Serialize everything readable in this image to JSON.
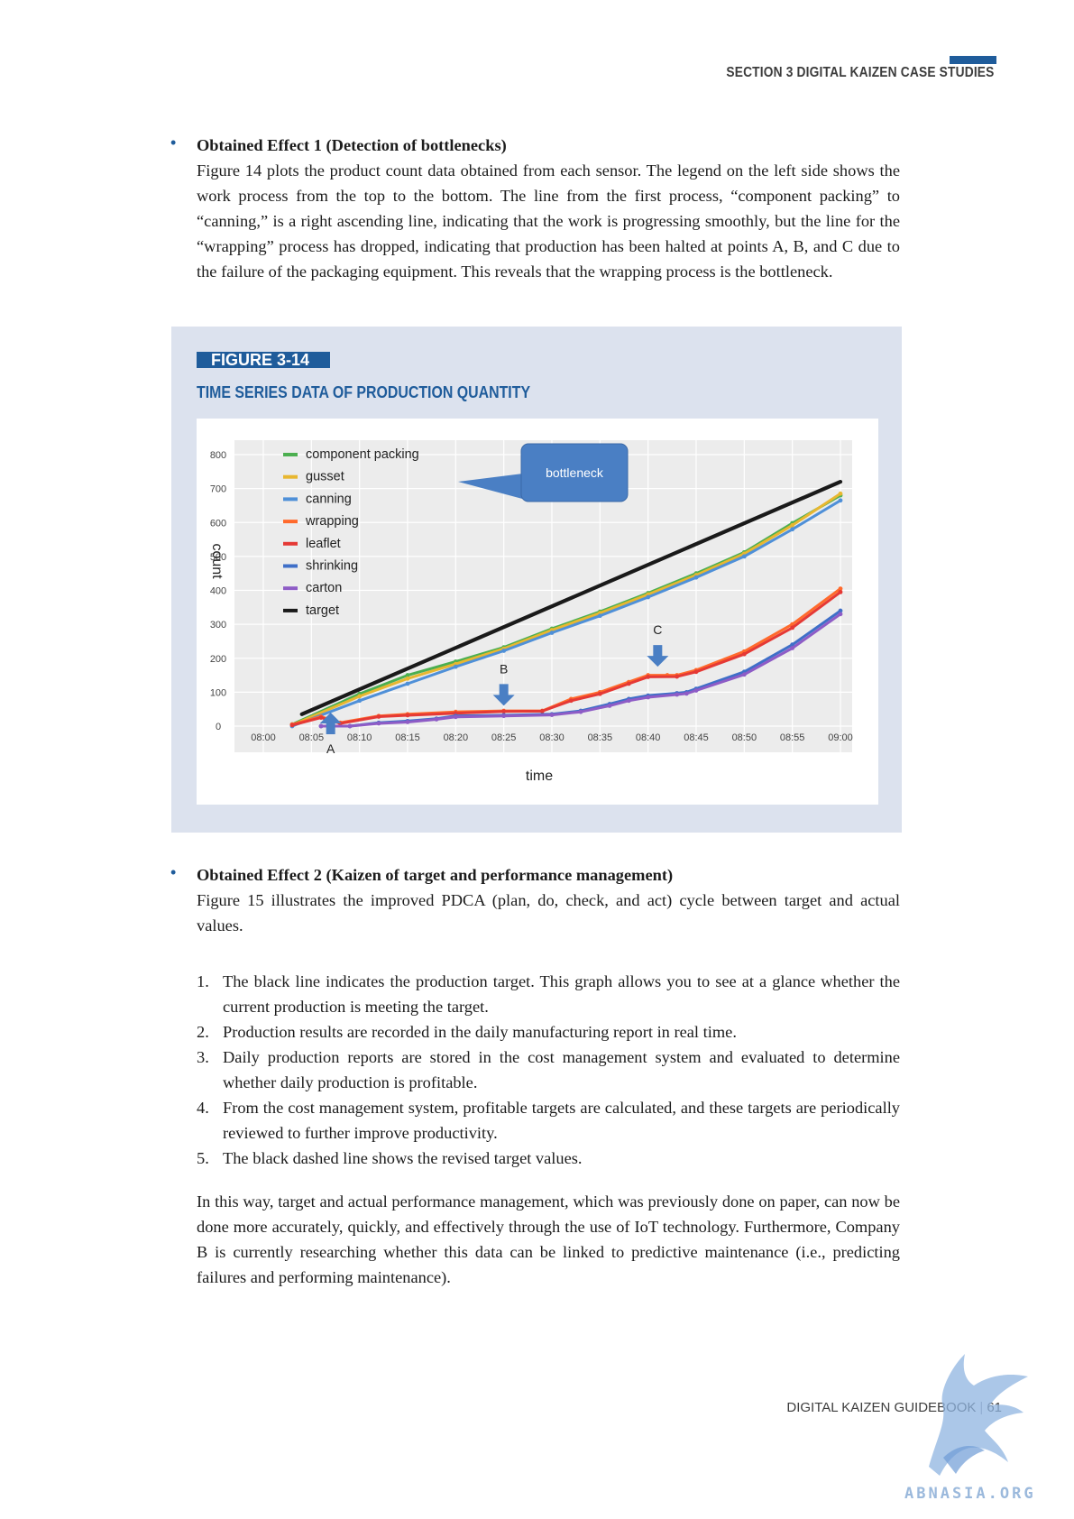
{
  "header": {
    "section": "SECTION 3  DIGITAL KAIZEN CASE STUDIES"
  },
  "effect1": {
    "heading": "Obtained Effect 1 (Detection of bottlenecks)",
    "body": "Figure 14 plots the product count data obtained from each sensor. The legend on the left side shows the work process from the top to the bottom. The line from the first process, “component packing” to “canning,” is a right ascending line, indicating that the work is progressing smoothly, but the line for the “wrapping” process has dropped, indicating that production has been halted at points A, B, and C due to the failure of the packaging equipment. This reveals that the wrapping process is the bottleneck."
  },
  "figure": {
    "label": "FIGURE 3-14",
    "title": "TIME SERIES DATA OF PRODUCTION QUANTITY"
  },
  "chart_data": {
    "type": "line",
    "xlabel": "time",
    "ylabel": "count",
    "x_ticks": [
      "08:00",
      "08:05",
      "08:10",
      "08:15",
      "08:20",
      "08:25",
      "08:30",
      "08:35",
      "08:40",
      "08:45",
      "08:50",
      "08:55",
      "09:00"
    ],
    "y_ticks": [
      0,
      100,
      200,
      300,
      400,
      500,
      600,
      700,
      800
    ],
    "xlim": [
      "08:00",
      "09:00"
    ],
    "ylim": [
      0,
      800
    ],
    "grid": true,
    "legend_position": "top-left",
    "series": [
      {
        "name": "component packing",
        "color": "#4caf50",
        "points": [
          [
            "08:03",
            5
          ],
          [
            "08:10",
            95
          ],
          [
            "08:15",
            150
          ],
          [
            "08:20",
            190
          ],
          [
            "08:25",
            232
          ],
          [
            "08:30",
            287
          ],
          [
            "08:35",
            337
          ],
          [
            "08:40",
            392
          ],
          [
            "08:45",
            450
          ],
          [
            "08:50",
            512
          ],
          [
            "08:55",
            598
          ],
          [
            "09:00",
            680
          ]
        ]
      },
      {
        "name": "gusset",
        "color": "#e8b730",
        "points": [
          [
            "08:03",
            3
          ],
          [
            "08:10",
            88
          ],
          [
            "08:15",
            140
          ],
          [
            "08:20",
            183
          ],
          [
            "08:25",
            228
          ],
          [
            "08:30",
            283
          ],
          [
            "08:35",
            333
          ],
          [
            "08:40",
            388
          ],
          [
            "08:45",
            445
          ],
          [
            "08:50",
            508
          ],
          [
            "08:55",
            592
          ],
          [
            "09:00",
            685
          ]
        ]
      },
      {
        "name": "canning",
        "color": "#4f90d8",
        "points": [
          [
            "08:03",
            0
          ],
          [
            "08:10",
            75
          ],
          [
            "08:15",
            125
          ],
          [
            "08:20",
            175
          ],
          [
            "08:25",
            222
          ],
          [
            "08:30",
            275
          ],
          [
            "08:35",
            325
          ],
          [
            "08:40",
            380
          ],
          [
            "08:45",
            438
          ],
          [
            "08:50",
            500
          ],
          [
            "08:55",
            580
          ],
          [
            "09:00",
            665
          ]
        ]
      },
      {
        "name": "wrapping",
        "color": "#ff6a2c",
        "points": [
          [
            "08:03",
            5
          ],
          [
            "08:06",
            28
          ],
          [
            "08:08",
            10
          ],
          [
            "08:12",
            30
          ],
          [
            "08:15",
            35
          ],
          [
            "08:20",
            42
          ],
          [
            "08:25",
            45
          ],
          [
            "08:29",
            45
          ],
          [
            "08:32",
            80
          ],
          [
            "08:35",
            100
          ],
          [
            "08:38",
            130
          ],
          [
            "08:40",
            150
          ],
          [
            "08:42",
            150
          ],
          [
            "08:43",
            150
          ],
          [
            "08:45",
            165
          ],
          [
            "08:50",
            220
          ],
          [
            "08:55",
            300
          ],
          [
            "09:00",
            405
          ]
        ]
      },
      {
        "name": "leaflet",
        "color": "#e53935",
        "points": [
          [
            "08:03",
            3
          ],
          [
            "08:06",
            25
          ],
          [
            "08:08",
            8
          ],
          [
            "08:12",
            28
          ],
          [
            "08:15",
            32
          ],
          [
            "08:20",
            38
          ],
          [
            "08:25",
            43
          ],
          [
            "08:29",
            44
          ],
          [
            "08:32",
            75
          ],
          [
            "08:35",
            95
          ],
          [
            "08:38",
            125
          ],
          [
            "08:40",
            145
          ],
          [
            "08:43",
            146
          ],
          [
            "08:45",
            160
          ],
          [
            "08:50",
            212
          ],
          [
            "08:55",
            290
          ],
          [
            "09:00",
            395
          ]
        ]
      },
      {
        "name": "shrinking",
        "color": "#3f6fc8",
        "points": [
          [
            "08:06",
            0
          ],
          [
            "08:09",
            0
          ],
          [
            "08:12",
            10
          ],
          [
            "08:15",
            15
          ],
          [
            "08:18",
            22
          ],
          [
            "08:20",
            30
          ],
          [
            "08:25",
            32
          ],
          [
            "08:30",
            35
          ],
          [
            "08:33",
            45
          ],
          [
            "08:36",
            65
          ],
          [
            "08:38",
            80
          ],
          [
            "08:40",
            90
          ],
          [
            "08:43",
            97
          ],
          [
            "08:44",
            100
          ],
          [
            "08:45",
            110
          ],
          [
            "08:50",
            160
          ],
          [
            "08:55",
            240
          ],
          [
            "09:00",
            340
          ]
        ]
      },
      {
        "name": "carton",
        "color": "#8e5cc6",
        "points": [
          [
            "08:06",
            0
          ],
          [
            "08:09",
            0
          ],
          [
            "08:12",
            8
          ],
          [
            "08:15",
            12
          ],
          [
            "08:18",
            20
          ],
          [
            "08:20",
            27
          ],
          [
            "08:25",
            30
          ],
          [
            "08:30",
            33
          ],
          [
            "08:33",
            42
          ],
          [
            "08:36",
            60
          ],
          [
            "08:38",
            75
          ],
          [
            "08:40",
            85
          ],
          [
            "08:43",
            93
          ],
          [
            "08:44",
            96
          ],
          [
            "08:45",
            105
          ],
          [
            "08:50",
            152
          ],
          [
            "08:55",
            230
          ],
          [
            "09:00",
            330
          ]
        ]
      },
      {
        "name": "target",
        "color": "#1a1a1a",
        "points": [
          [
            "08:04",
            35
          ],
          [
            "09:00",
            720
          ]
        ]
      }
    ],
    "annotations": [
      {
        "text": "bottleneck",
        "type": "callout"
      },
      {
        "text": "A",
        "type": "arrow-up",
        "at": [
          "08:07",
          0
        ]
      },
      {
        "text": "B",
        "type": "arrow-down",
        "at": [
          "08:25",
          60
        ]
      },
      {
        "text": "C",
        "type": "arrow-down",
        "at": [
          "08:41",
          175
        ]
      }
    ]
  },
  "effect2": {
    "heading": "Obtained Effect 2 (Kaizen of target and performance management)",
    "body": "Figure 15 illustrates the improved PDCA (plan, do, check, and act) cycle between target and actual values."
  },
  "list": [
    {
      "num": "1.",
      "text": "The black line indicates the production target. This graph allows you to see at a glance whether the current production is meeting the target."
    },
    {
      "num": "2.",
      "text": "Production results are recorded in the daily manufacturing report in real time."
    },
    {
      "num": "3.",
      "text": "Daily production reports are stored in the cost management system and evaluated to determine whether daily production is profitable."
    },
    {
      "num": "4.",
      "text": "From the cost management system, profitable targets are calculated, and these targets are periodically reviewed to further improve productivity."
    },
    {
      "num": "5.",
      "text": "The black dashed line shows the revised target values."
    }
  ],
  "closing": "In this way, target and actual performance management, which was previously done on paper, can now be done more accurately, quickly, and effectively through the use of IoT technology. Furthermore, Company B is currently researching whether this data can be linked to predictive maintenance (i.e., predicting failures and performing maintenance).",
  "footer": {
    "guide": "DIGITAL KAIZEN GUIDEBOOK",
    "sep": "|",
    "page": "61"
  },
  "watermark": {
    "text": "ABNASIA.ORG"
  }
}
